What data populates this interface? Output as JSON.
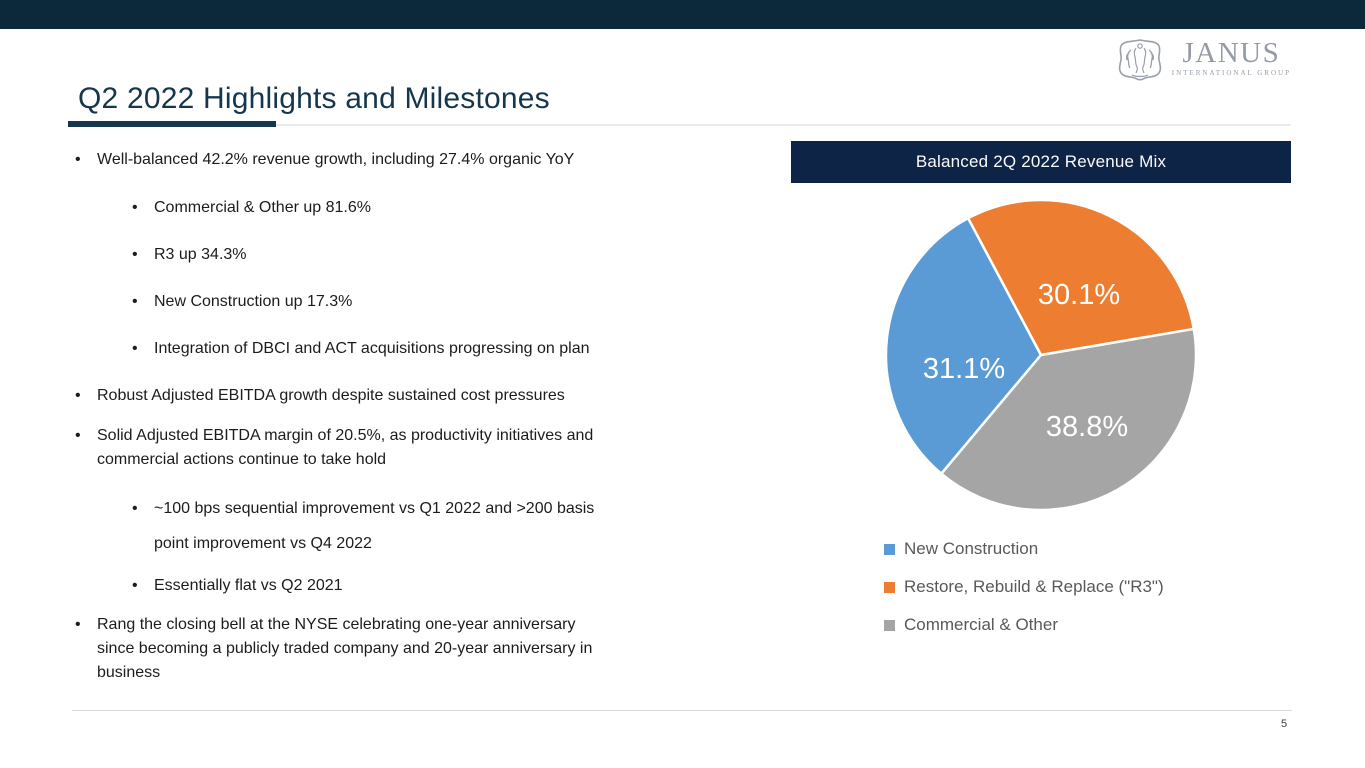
{
  "slide": {
    "title": "Q2 2022 Highlights and Milestones",
    "page_number": "5",
    "logo": {
      "name": "JANUS",
      "subtitle": "INTERNATIONAL GROUP"
    }
  },
  "bullets": [
    {
      "level": 1,
      "text": "Well-balanced 42.2% revenue growth, including 27.4% organic YoY"
    },
    {
      "level": 2,
      "text": "Commercial & Other up 81.6%"
    },
    {
      "level": 2,
      "text": "R3 up 34.3%"
    },
    {
      "level": 2,
      "text": "New Construction up 17.3%"
    },
    {
      "level": 2,
      "text": "Integration of DBCI and ACT acquisitions progressing on plan"
    },
    {
      "level": 1,
      "text": "Robust Adjusted EBITDA growth despite sustained cost pressures"
    },
    {
      "level": 1,
      "text": "Solid Adjusted EBITDA margin of 20.5%, as productivity initiatives and\ncommercial actions continue to take hold"
    },
    {
      "level": 2,
      "text": "~100 bps sequential improvement vs Q1 2022 and >200 basis\npoint improvement vs Q4 2022"
    },
    {
      "level": 2,
      "text": "Essentially flat vs Q2 2021"
    },
    {
      "level": 1,
      "text": "Rang the closing bell at the NYSE celebrating one-year anniversary\nsince becoming a publicly traded company and 20-year anniversary in\nbusiness"
    }
  ],
  "chart_data": {
    "type": "pie",
    "title": "Balanced 2Q 2022 Revenue Mix",
    "start_angle_deg": 220,
    "slices": [
      {
        "label": "New Construction",
        "value": 31.1,
        "display": "31.1%",
        "color": "#5B9BD5"
      },
      {
        "label": "Restore, Rebuild & Replace (\"R3\")",
        "value": 30.1,
        "display": "30.1%",
        "color": "#ED7D31"
      },
      {
        "label": "Commercial & Other",
        "value": 38.8,
        "display": "38.8%",
        "color": "#A5A5A5"
      }
    ],
    "data_label_color": "#FFFFFF",
    "legend_position": "bottom-left"
  },
  "colors": {
    "top_bar": "#0C293B",
    "title_text": "#15374B",
    "chart_header_bg": "#0E2446",
    "chart_header_text": "#FAFAFA",
    "legend_text": "#595959",
    "logo_gray": "#949BA6"
  }
}
